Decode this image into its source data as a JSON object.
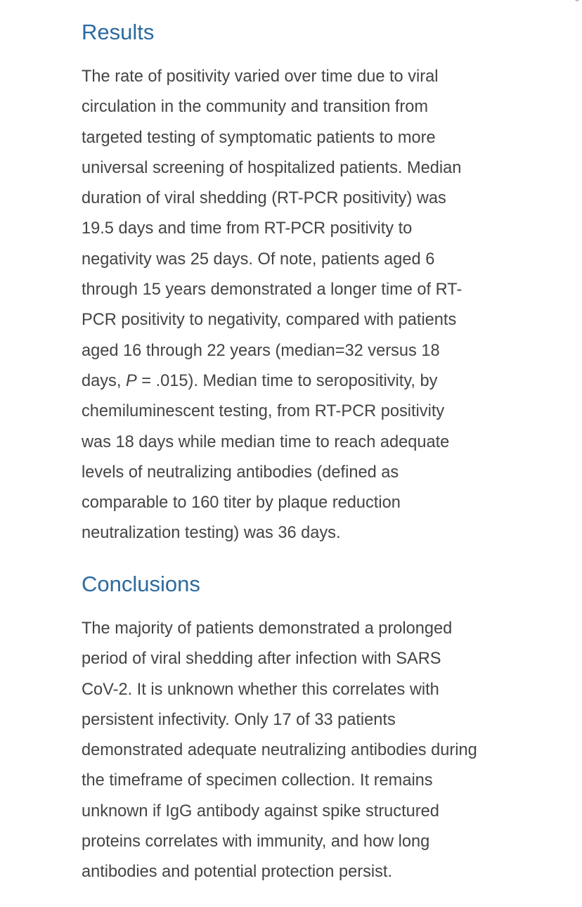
{
  "results": {
    "heading": "Results",
    "lines": [
      "The rate of positivity varied over time due to viral",
      "circulation in the community and transition from",
      "targeted testing of symptomatic patients to more",
      "universal screening of hospitalized patients. Median",
      "duration of viral shedding (RT-PCR positivity) was",
      "19.5 days and time from RT-PCR positivity to",
      "negativity was 25 days. Of note, patients aged 6",
      "through 15 years demonstrated a longer time of RT-",
      "PCR positivity to negativity, compared with patients",
      "aged 16 through 22 years (median=32 versus 18"
    ],
    "pline": {
      "before": "days, ",
      "italic": "P",
      "after": " = .015). Median time to seropositivity, by"
    },
    "lines_after": [
      "chemiluminescent testing, from RT-PCR positivity",
      "was 18 days while median time to reach adequate",
      "levels of neutralizing antibodies (defined as",
      "comparable to 160 titer by plaque reduction",
      "neutralization testing) was 36 days."
    ]
  },
  "conclusions": {
    "heading": "Conclusions",
    "lines": [
      "The majority of patients demonstrated a prolonged",
      "period of viral shedding after infection with SARS",
      "CoV-2. It is unknown whether this correlates with",
      "persistent infectivity. Only 17 of 33 patients",
      "demonstrated adequate neutralizing antibodies during",
      "the timeframe of specimen collection. It remains",
      "unknown if IgG antibody against spike structured",
      "proteins correlates with immunity, and how long",
      "antibodies and potential protection persist."
    ]
  }
}
